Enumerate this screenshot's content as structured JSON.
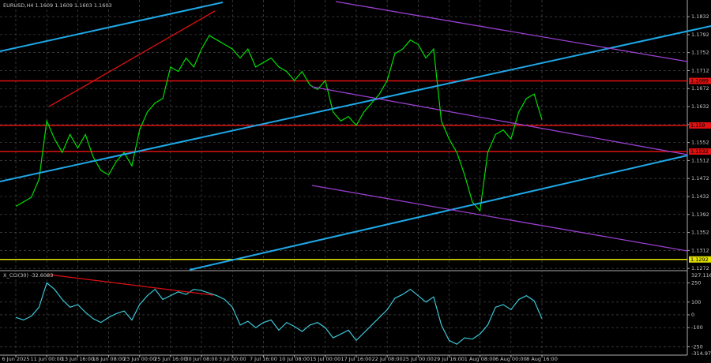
{
  "chart_data": [
    {
      "type": "line",
      "title": "EURUSD,H4  1.1609 1.1609 1.1603 1.1603",
      "color": "#00e000",
      "categories": [
        "6 Jun 2025",
        null,
        null,
        null,
        "11 Jun 00:00",
        null,
        null,
        null,
        "13 Jun 16:00",
        null,
        null,
        null,
        "18 Jun 08:00",
        null,
        null,
        null,
        "23 Jun 00:00",
        null,
        null,
        null,
        "25 Jun 16:00",
        null,
        null,
        null,
        "30 Jun 08:00",
        null,
        null,
        null,
        "3 Jul 00:00",
        null,
        null,
        null,
        "7 Jul 16:00",
        null,
        null,
        null,
        "10 Jul 08:00",
        null,
        null,
        null,
        "15 Jul 00:00",
        null,
        null,
        null,
        "17 Jul 16:00",
        null,
        null,
        null,
        "22 Jul 08:00",
        null,
        null,
        null,
        "25 Jul 00:00",
        null,
        null,
        null,
        "29 Jul 16:00",
        null,
        null,
        null,
        "1 Aug 08:00",
        null,
        null,
        null,
        "6 Aug 00:00",
        null,
        null,
        null,
        "8 Aug 16:00"
      ],
      "values": [
        1.141,
        1.142,
        1.143,
        1.147,
        1.16,
        1.156,
        1.153,
        1.157,
        1.154,
        1.157,
        1.152,
        1.149,
        1.148,
        1.151,
        1.153,
        1.15,
        1.158,
        1.162,
        1.164,
        1.165,
        1.172,
        1.171,
        1.174,
        1.172,
        1.176,
        1.179,
        1.178,
        1.177,
        1.176,
        1.174,
        1.176,
        1.172,
        1.173,
        1.174,
        1.172,
        1.171,
        1.169,
        1.171,
        1.168,
        1.167,
        1.169,
        1.162,
        1.16,
        1.161,
        1.159,
        1.162,
        1.164,
        1.166,
        1.169,
        1.175,
        1.176,
        1.178,
        1.177,
        1.174,
        1.176,
        1.16,
        1.156,
        1.153,
        1.148,
        1.142,
        1.14,
        1.153,
        1.157,
        1.158,
        1.156,
        1.162,
        1.165,
        1.166,
        1.1603
      ],
      "ylim": [
        1.1267,
        1.1869
      ],
      "yticks": [
        1.1832,
        1.1792,
        1.1752,
        1.1712,
        1.1672,
        1.1632,
        1.1592,
        1.1552,
        1.1512,
        1.1472,
        1.1432,
        1.1392,
        1.1352,
        1.1312,
        1.1272
      ],
      "grid": true,
      "levels": [
        {
          "value": 1.1689,
          "color": "#e01010"
        },
        {
          "value": 1.159,
          "color": "#e01010"
        },
        {
          "value": 1.1532,
          "color": "#e01010"
        },
        {
          "value": 1.1292,
          "color": "#e0e000"
        }
      ]
    },
    {
      "type": "line",
      "title": "X_CCI(30) -32.6083",
      "color": "#3cc6d6",
      "values": [
        -20,
        -40,
        -10,
        60,
        250,
        200,
        120,
        60,
        80,
        20,
        -30,
        -60,
        -20,
        10,
        30,
        -40,
        80,
        150,
        200,
        120,
        150,
        180,
        160,
        200,
        190,
        170,
        150,
        120,
        60,
        -80,
        -50,
        -100,
        -60,
        -40,
        -120,
        -60,
        -90,
        -130,
        -80,
        -60,
        -100,
        -180,
        -150,
        -120,
        -200,
        -140,
        -80,
        -20,
        40,
        130,
        160,
        200,
        150,
        100,
        140,
        -80,
        -200,
        -230,
        -180,
        -190,
        -150,
        -80,
        60,
        80,
        40,
        120,
        150,
        110,
        -30
      ],
      "ylim": [
        -314.975,
        327.116
      ],
      "yticks": [
        250,
        100,
        0,
        -100,
        -250
      ],
      "grid": true
    }
  ]
}
